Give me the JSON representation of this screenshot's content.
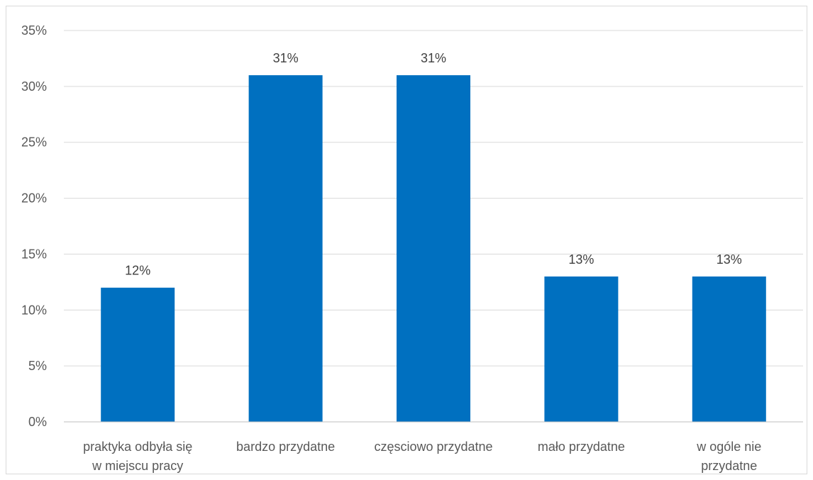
{
  "chart_data": {
    "type": "bar",
    "title": "",
    "xlabel": "",
    "ylabel": "",
    "categories": [
      [
        "praktyka odbyła się",
        "w miejscu pracy"
      ],
      [
        "bardzo przydatne"
      ],
      [
        "częsciowo przydatne"
      ],
      [
        "mało przydatne"
      ],
      [
        "w ogóle nie",
        "przydatne"
      ]
    ],
    "values": [
      12,
      31,
      31,
      13,
      13
    ],
    "data_labels": [
      "12%",
      "31%",
      "31%",
      "13%",
      "13%"
    ],
    "ylim": [
      0,
      35
    ],
    "y_ticks": [
      0,
      5,
      10,
      15,
      20,
      25,
      30,
      35
    ],
    "y_tick_labels": [
      "0%",
      "5%",
      "10%",
      "15%",
      "20%",
      "25%",
      "30%",
      "35%"
    ],
    "grid": true,
    "legend": "none",
    "colors": {
      "bar": "#0070C0",
      "grid": "#d9d9d9",
      "axis": "#bfbfbf"
    }
  }
}
